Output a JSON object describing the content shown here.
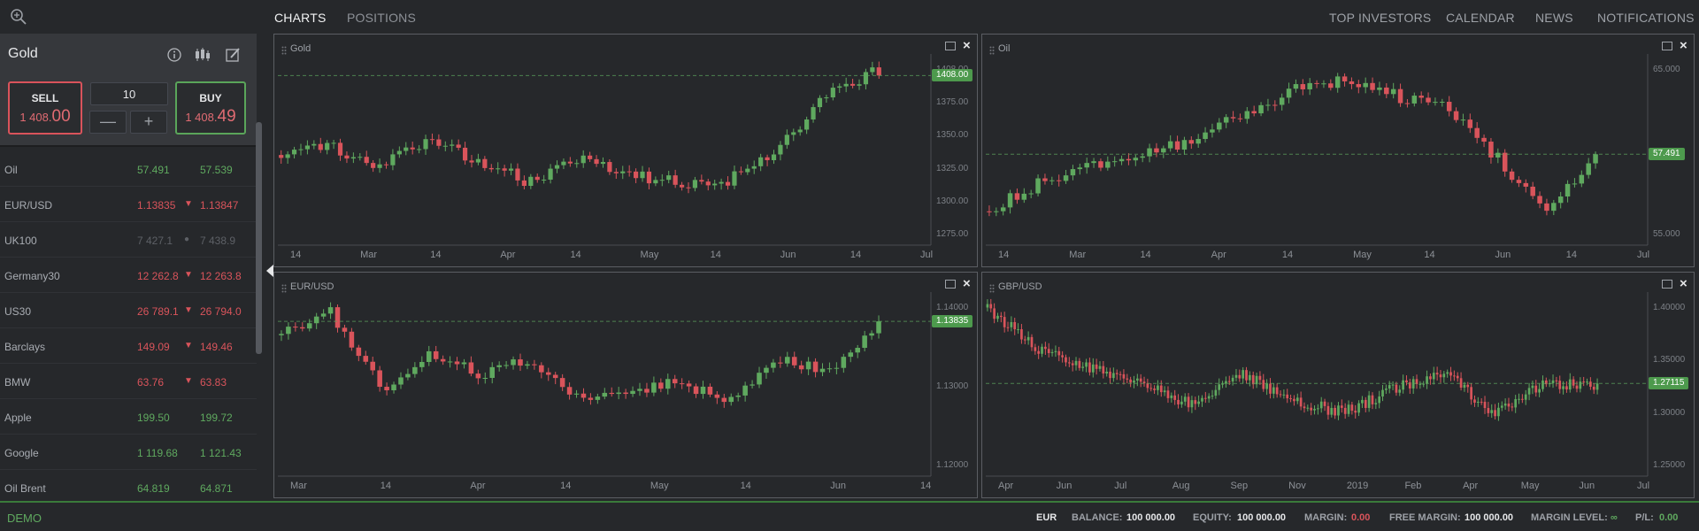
{
  "nav": {
    "tabs": [
      "CHARTS",
      "POSITIONS"
    ],
    "right": [
      "TOP INVESTORS",
      "CALENDAR",
      "NEWS",
      "NOTIFICATIONS"
    ]
  },
  "instrument": {
    "name": "Gold",
    "sell_label": "SELL",
    "sell_price_main": "1 408.",
    "sell_price_big": "00",
    "buy_label": "BUY",
    "buy_price_main": "1 408.",
    "buy_price_big": "49",
    "quantity": "10",
    "minus": "—",
    "plus": "+"
  },
  "watchlist": [
    {
      "name": "Oil",
      "bid": "57.491",
      "ask": "57.539",
      "trend": "up",
      "arrow": ""
    },
    {
      "name": "EUR/USD",
      "bid": "1.13835",
      "ask": "1.13847",
      "trend": "down",
      "arrow": "▼"
    },
    {
      "name": "UK100",
      "bid": "7 427.1",
      "ask": "7 438.9",
      "trend": "flat",
      "arrow": "●"
    },
    {
      "name": "Germany30",
      "bid": "12 262.8",
      "ask": "12 263.8",
      "trend": "down",
      "arrow": "▼"
    },
    {
      "name": "US30",
      "bid": "26 789.1",
      "ask": "26 794.0",
      "trend": "down",
      "arrow": "▼"
    },
    {
      "name": "Barclays",
      "bid": "149.09",
      "ask": "149.46",
      "trend": "down",
      "arrow": "▼"
    },
    {
      "name": "BMW",
      "bid": "63.76",
      "ask": "63.83",
      "trend": "down",
      "arrow": "▼"
    },
    {
      "name": "Apple",
      "bid": "199.50",
      "ask": "199.72",
      "trend": "up",
      "arrow": ""
    },
    {
      "name": "Google",
      "bid": "1 119.68",
      "ask": "1 121.43",
      "trend": "up",
      "arrow": ""
    },
    {
      "name": "Oil Brent",
      "bid": "64.819",
      "ask": "64.871",
      "trend": "up",
      "arrow": ""
    }
  ],
  "colors": {
    "up": "#5fa95f",
    "down": "#d9545b",
    "accent_green": "#3a7a3a"
  },
  "charts": [
    {
      "title": "Gold",
      "price_tag": "1408.00",
      "y_ticks": [
        "1408.00",
        "1375.00",
        "1350.00",
        "1325.00",
        "1300.00",
        "1275.00"
      ],
      "x_ticks": [
        "14",
        "Mar",
        "14",
        "Apr",
        "14",
        "May",
        "14",
        "Jun",
        "14",
        "Jul"
      ]
    },
    {
      "title": "Oil",
      "price_tag": "57.491",
      "y_ticks": [
        "65.000",
        "60.000",
        "55.000"
      ],
      "x_ticks": [
        "14",
        "Mar",
        "14",
        "Apr",
        "14",
        "May",
        "14",
        "Jun",
        "14",
        "Jul"
      ]
    },
    {
      "title": "EUR/USD",
      "price_tag": "1.13835",
      "y_ticks": [
        "1.14000",
        "1.13000",
        "1.12000"
      ],
      "x_ticks": [
        "Mar",
        "14",
        "Apr",
        "14",
        "May",
        "14",
        "Jun",
        "14"
      ]
    },
    {
      "title": "GBP/USD",
      "price_tag": "1.27115",
      "y_ticks": [
        "1.40000",
        "1.35000",
        "1.30000",
        "1.25000"
      ],
      "x_ticks": [
        "Apr",
        "Jun",
        "Jul",
        "Aug",
        "Sep",
        "Nov",
        "2019",
        "Feb",
        "Apr",
        "May",
        "Jun",
        "Jul"
      ]
    }
  ],
  "footer": {
    "mode": "DEMO",
    "currency": "EUR",
    "balance_label": "BALANCE:",
    "balance": "100 000.00",
    "equity_label": "EQUITY:",
    "equity": "100 000.00",
    "margin_label": "MARGIN:",
    "margin": "0.00",
    "free_margin_label": "FREE MARGIN:",
    "free_margin": "100 000.00",
    "margin_level_label": "MARGIN LEVEL:",
    "margin_level": "∞",
    "pl_label": "P/L:",
    "pl": "0.00"
  }
}
